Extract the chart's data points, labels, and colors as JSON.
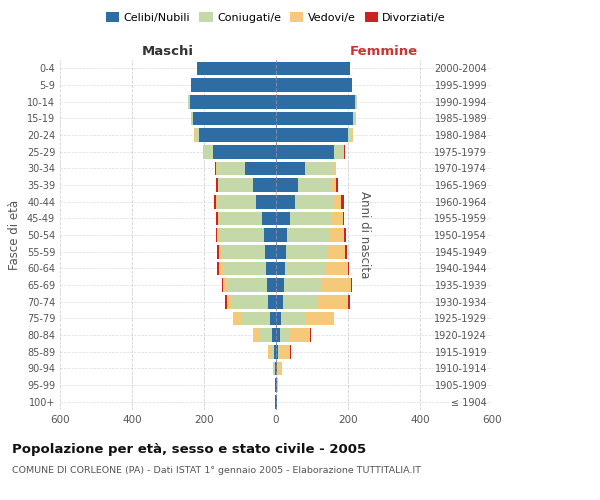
{
  "age_groups": [
    "100+",
    "95-99",
    "90-94",
    "85-89",
    "80-84",
    "75-79",
    "70-74",
    "65-69",
    "60-64",
    "55-59",
    "50-54",
    "45-49",
    "40-44",
    "35-39",
    "30-34",
    "25-29",
    "20-24",
    "15-19",
    "10-14",
    "5-9",
    "0-4"
  ],
  "birth_years": [
    "≤ 1904",
    "1905-1909",
    "1910-1914",
    "1915-1919",
    "1920-1924",
    "1925-1929",
    "1930-1934",
    "1935-1939",
    "1940-1944",
    "1945-1949",
    "1950-1954",
    "1955-1959",
    "1960-1964",
    "1965-1969",
    "1970-1974",
    "1975-1979",
    "1980-1984",
    "1985-1989",
    "1990-1994",
    "1995-1999",
    "2000-2004"
  ],
  "maschi_celibi": [
    2,
    2,
    3,
    5,
    12,
    18,
    22,
    25,
    28,
    30,
    32,
    38,
    55,
    65,
    85,
    175,
    215,
    230,
    240,
    235,
    220
  ],
  "maschi_coniugati": [
    0,
    0,
    2,
    8,
    35,
    80,
    100,
    110,
    120,
    120,
    125,
    120,
    110,
    95,
    80,
    25,
    10,
    5,
    5,
    0,
    0
  ],
  "maschi_vedovi": [
    0,
    0,
    3,
    10,
    18,
    22,
    15,
    12,
    10,
    8,
    6,
    4,
    2,
    2,
    2,
    2,
    2,
    2,
    0,
    0,
    0
  ],
  "maschi_divorziati": [
    0,
    0,
    0,
    0,
    0,
    0,
    4,
    4,
    5,
    5,
    4,
    4,
    4,
    4,
    2,
    2,
    0,
    0,
    0,
    0,
    0
  ],
  "femmine_celibi": [
    2,
    2,
    3,
    5,
    10,
    15,
    20,
    22,
    25,
    28,
    30,
    38,
    52,
    60,
    80,
    160,
    200,
    215,
    220,
    210,
    205
  ],
  "femmine_coniugati": [
    0,
    0,
    2,
    5,
    25,
    65,
    95,
    105,
    115,
    115,
    120,
    118,
    108,
    92,
    78,
    25,
    10,
    5,
    5,
    0,
    0
  ],
  "femmine_vedovi": [
    2,
    3,
    12,
    30,
    60,
    80,
    85,
    80,
    60,
    50,
    40,
    30,
    20,
    15,
    8,
    5,
    3,
    2,
    0,
    0,
    0
  ],
  "femmine_divorziati": [
    0,
    0,
    0,
    2,
    2,
    2,
    5,
    4,
    4,
    4,
    4,
    4,
    8,
    4,
    2,
    2,
    0,
    0,
    0,
    0,
    0
  ],
  "colors": {
    "celibi": "#2E6DA4",
    "coniugati": "#C5D9A8",
    "vedovi": "#F5C97A",
    "divorziati": "#CC2222"
  },
  "xlim": 600,
  "title": "Popolazione per età, sesso e stato civile - 2005",
  "subtitle": "COMUNE DI CORLEONE (PA) - Dati ISTAT 1° gennaio 2005 - Elaborazione TUTTITALIA.IT",
  "ylabel_left": "Fasce di età",
  "ylabel_right": "Anni di nascita",
  "xlabel_left": "Maschi",
  "xlabel_right": "Femmine",
  "legend_labels": [
    "Celibi/Nubili",
    "Coniugati/e",
    "Vedovi/e",
    "Divorziati/e"
  ],
  "background_color": "#ffffff",
  "grid_color": "#cccccc"
}
